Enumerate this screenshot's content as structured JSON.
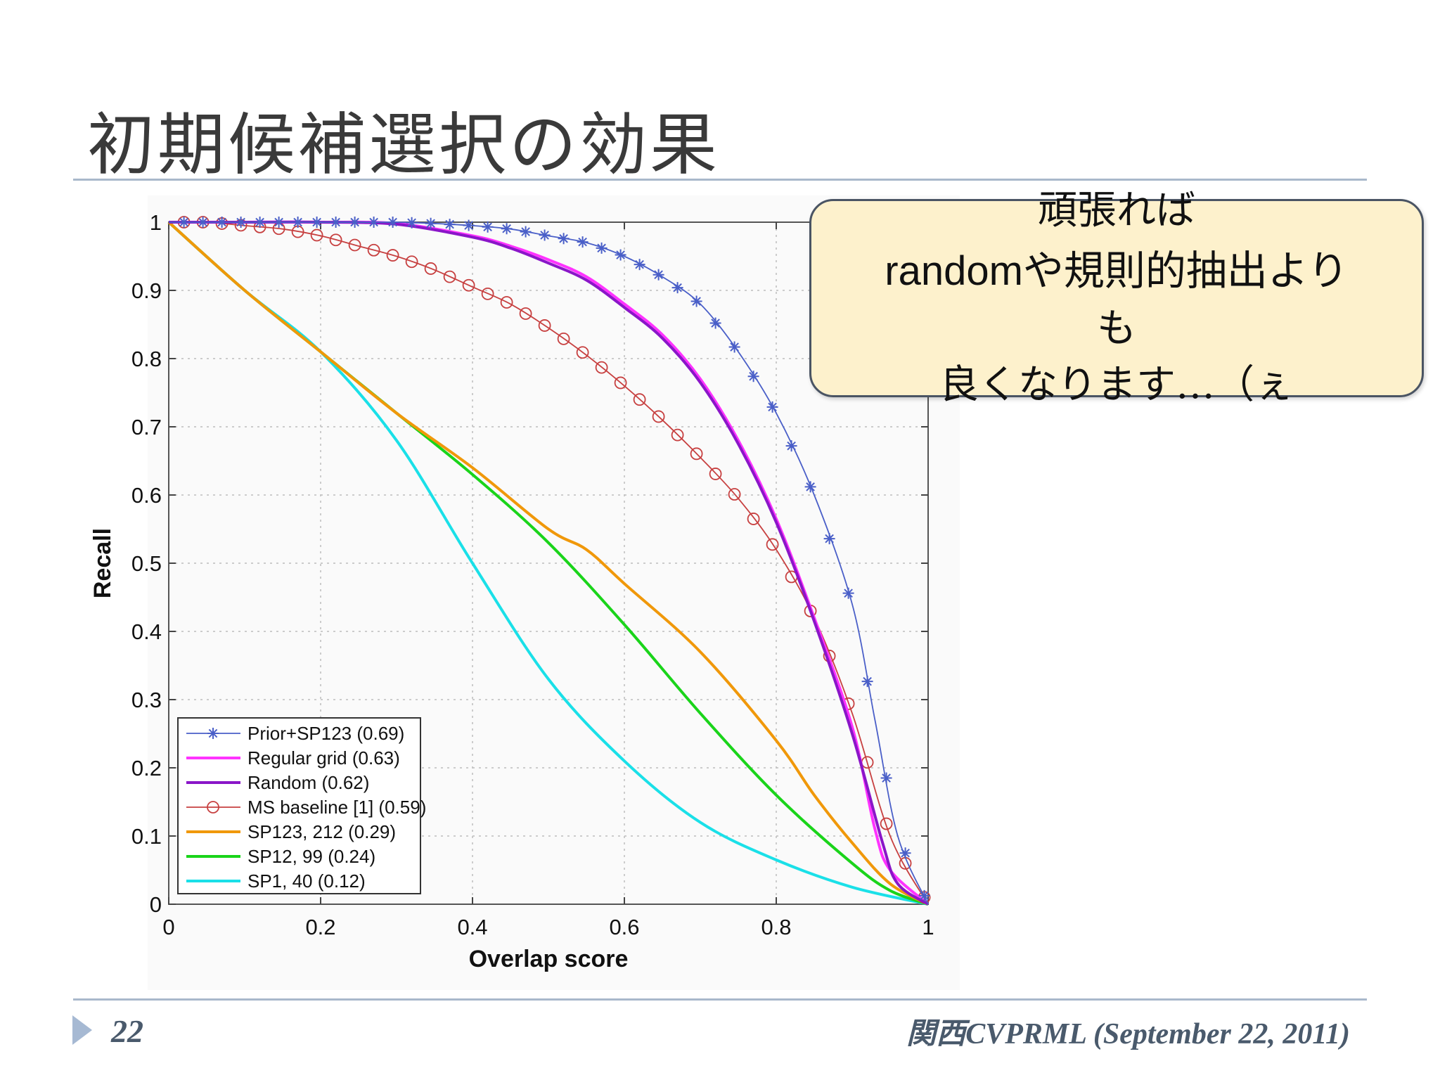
{
  "slide": {
    "title": "初期候補選択の効果",
    "callout_lines": [
      "頑張れば",
      "randomや規則的抽出より",
      "も",
      "良くなります…（ぇ"
    ],
    "page_number": "22",
    "footer": "関西CVPRML (September 22, 2011)"
  },
  "chart_data": {
    "type": "line",
    "xlabel": "Overlap score",
    "ylabel": "Recall",
    "xlim": [
      0,
      1
    ],
    "ylim": [
      0,
      1
    ],
    "xticks": [
      0,
      0.2,
      0.4,
      0.6,
      0.8,
      1
    ],
    "yticks": [
      0,
      0.1,
      0.2,
      0.3,
      0.4,
      0.5,
      0.6,
      0.7,
      0.8,
      0.9,
      1
    ],
    "xtick_labels": [
      "0",
      "0.2",
      "0.4",
      "0.6",
      "0.8",
      "1"
    ],
    "ytick_labels": [
      "0",
      "0.1",
      "0.2",
      "0.3",
      "0.4",
      "0.5",
      "0.6",
      "0.7",
      "0.8",
      "0.9",
      "1"
    ],
    "grid": true,
    "legend_position": "bottom-left",
    "series": [
      {
        "name": "Prior+SP123 (0.69)",
        "color": "#4a5fc8",
        "marker": "asterisk",
        "points": [
          [
            0,
            1
          ],
          [
            0.1,
            1
          ],
          [
            0.2,
            1
          ],
          [
            0.3,
            1
          ],
          [
            0.35,
            0.998
          ],
          [
            0.4,
            0.995
          ],
          [
            0.45,
            0.99
          ],
          [
            0.5,
            0.98
          ],
          [
            0.55,
            0.97
          ],
          [
            0.6,
            0.95
          ],
          [
            0.65,
            0.92
          ],
          [
            0.7,
            0.88
          ],
          [
            0.75,
            0.81
          ],
          [
            0.8,
            0.72
          ],
          [
            0.85,
            0.6
          ],
          [
            0.9,
            0.44
          ],
          [
            0.93,
            0.27
          ],
          [
            0.96,
            0.1
          ],
          [
            1,
            0
          ]
        ]
      },
      {
        "name": "Regular grid (0.63)",
        "color": "#ff33ff",
        "marker": "none",
        "points": [
          [
            0,
            1
          ],
          [
            0.1,
            1
          ],
          [
            0.2,
            1
          ],
          [
            0.3,
            0.998
          ],
          [
            0.4,
            0.98
          ],
          [
            0.45,
            0.965
          ],
          [
            0.5,
            0.945
          ],
          [
            0.55,
            0.92
          ],
          [
            0.6,
            0.88
          ],
          [
            0.65,
            0.835
          ],
          [
            0.7,
            0.77
          ],
          [
            0.75,
            0.68
          ],
          [
            0.8,
            0.565
          ],
          [
            0.85,
            0.42
          ],
          [
            0.9,
            0.26
          ],
          [
            0.93,
            0.11
          ],
          [
            0.95,
            0.05
          ],
          [
            1,
            0
          ]
        ]
      },
      {
        "name": "Random (0.62)",
        "color": "#8a16c8",
        "marker": "none",
        "points": [
          [
            0,
            1
          ],
          [
            0.1,
            1
          ],
          [
            0.2,
            1
          ],
          [
            0.3,
            0.997
          ],
          [
            0.4,
            0.978
          ],
          [
            0.45,
            0.962
          ],
          [
            0.5,
            0.94
          ],
          [
            0.55,
            0.915
          ],
          [
            0.6,
            0.875
          ],
          [
            0.65,
            0.83
          ],
          [
            0.7,
            0.765
          ],
          [
            0.75,
            0.675
          ],
          [
            0.8,
            0.56
          ],
          [
            0.85,
            0.415
          ],
          [
            0.9,
            0.25
          ],
          [
            0.94,
            0.09
          ],
          [
            0.96,
            0.03
          ],
          [
            1,
            0
          ]
        ]
      },
      {
        "name": "MS baseline [1] (0.59)",
        "color": "#c74040",
        "marker": "circle",
        "points": [
          [
            0,
            1
          ],
          [
            0.05,
            1
          ],
          [
            0.1,
            0.995
          ],
          [
            0.15,
            0.99
          ],
          [
            0.2,
            0.98
          ],
          [
            0.25,
            0.965
          ],
          [
            0.3,
            0.95
          ],
          [
            0.35,
            0.93
          ],
          [
            0.4,
            0.905
          ],
          [
            0.45,
            0.88
          ],
          [
            0.5,
            0.845
          ],
          [
            0.55,
            0.805
          ],
          [
            0.6,
            0.76
          ],
          [
            0.65,
            0.71
          ],
          [
            0.7,
            0.655
          ],
          [
            0.75,
            0.595
          ],
          [
            0.8,
            0.52
          ],
          [
            0.85,
            0.42
          ],
          [
            0.9,
            0.28
          ],
          [
            0.95,
            0.1
          ],
          [
            1,
            0
          ]
        ]
      },
      {
        "name": "SP123, 212 (0.29)",
        "color": "#f0980a",
        "marker": "none",
        "points": [
          [
            0,
            1
          ],
          [
            0.1,
            0.9
          ],
          [
            0.2,
            0.81
          ],
          [
            0.3,
            0.72
          ],
          [
            0.4,
            0.64
          ],
          [
            0.5,
            0.55
          ],
          [
            0.55,
            0.52
          ],
          [
            0.6,
            0.47
          ],
          [
            0.7,
            0.37
          ],
          [
            0.8,
            0.24
          ],
          [
            0.85,
            0.16
          ],
          [
            0.9,
            0.09
          ],
          [
            0.95,
            0.03
          ],
          [
            1,
            0
          ]
        ]
      },
      {
        "name": "SP12, 99 (0.24)",
        "color": "#1ad41a",
        "marker": "none",
        "points": [
          [
            0,
            1
          ],
          [
            0.1,
            0.9
          ],
          [
            0.2,
            0.81
          ],
          [
            0.3,
            0.72
          ],
          [
            0.4,
            0.63
          ],
          [
            0.5,
            0.53
          ],
          [
            0.6,
            0.41
          ],
          [
            0.7,
            0.28
          ],
          [
            0.8,
            0.16
          ],
          [
            0.9,
            0.06
          ],
          [
            0.95,
            0.02
          ],
          [
            1,
            0
          ]
        ]
      },
      {
        "name": "SP1, 40 (0.12)",
        "color": "#1ae0e8",
        "marker": "none",
        "points": [
          [
            0,
            1
          ],
          [
            0.1,
            0.9
          ],
          [
            0.2,
            0.81
          ],
          [
            0.3,
            0.68
          ],
          [
            0.4,
            0.5
          ],
          [
            0.5,
            0.33
          ],
          [
            0.6,
            0.21
          ],
          [
            0.7,
            0.12
          ],
          [
            0.8,
            0.065
          ],
          [
            0.9,
            0.025
          ],
          [
            1,
            0
          ]
        ]
      }
    ]
  }
}
